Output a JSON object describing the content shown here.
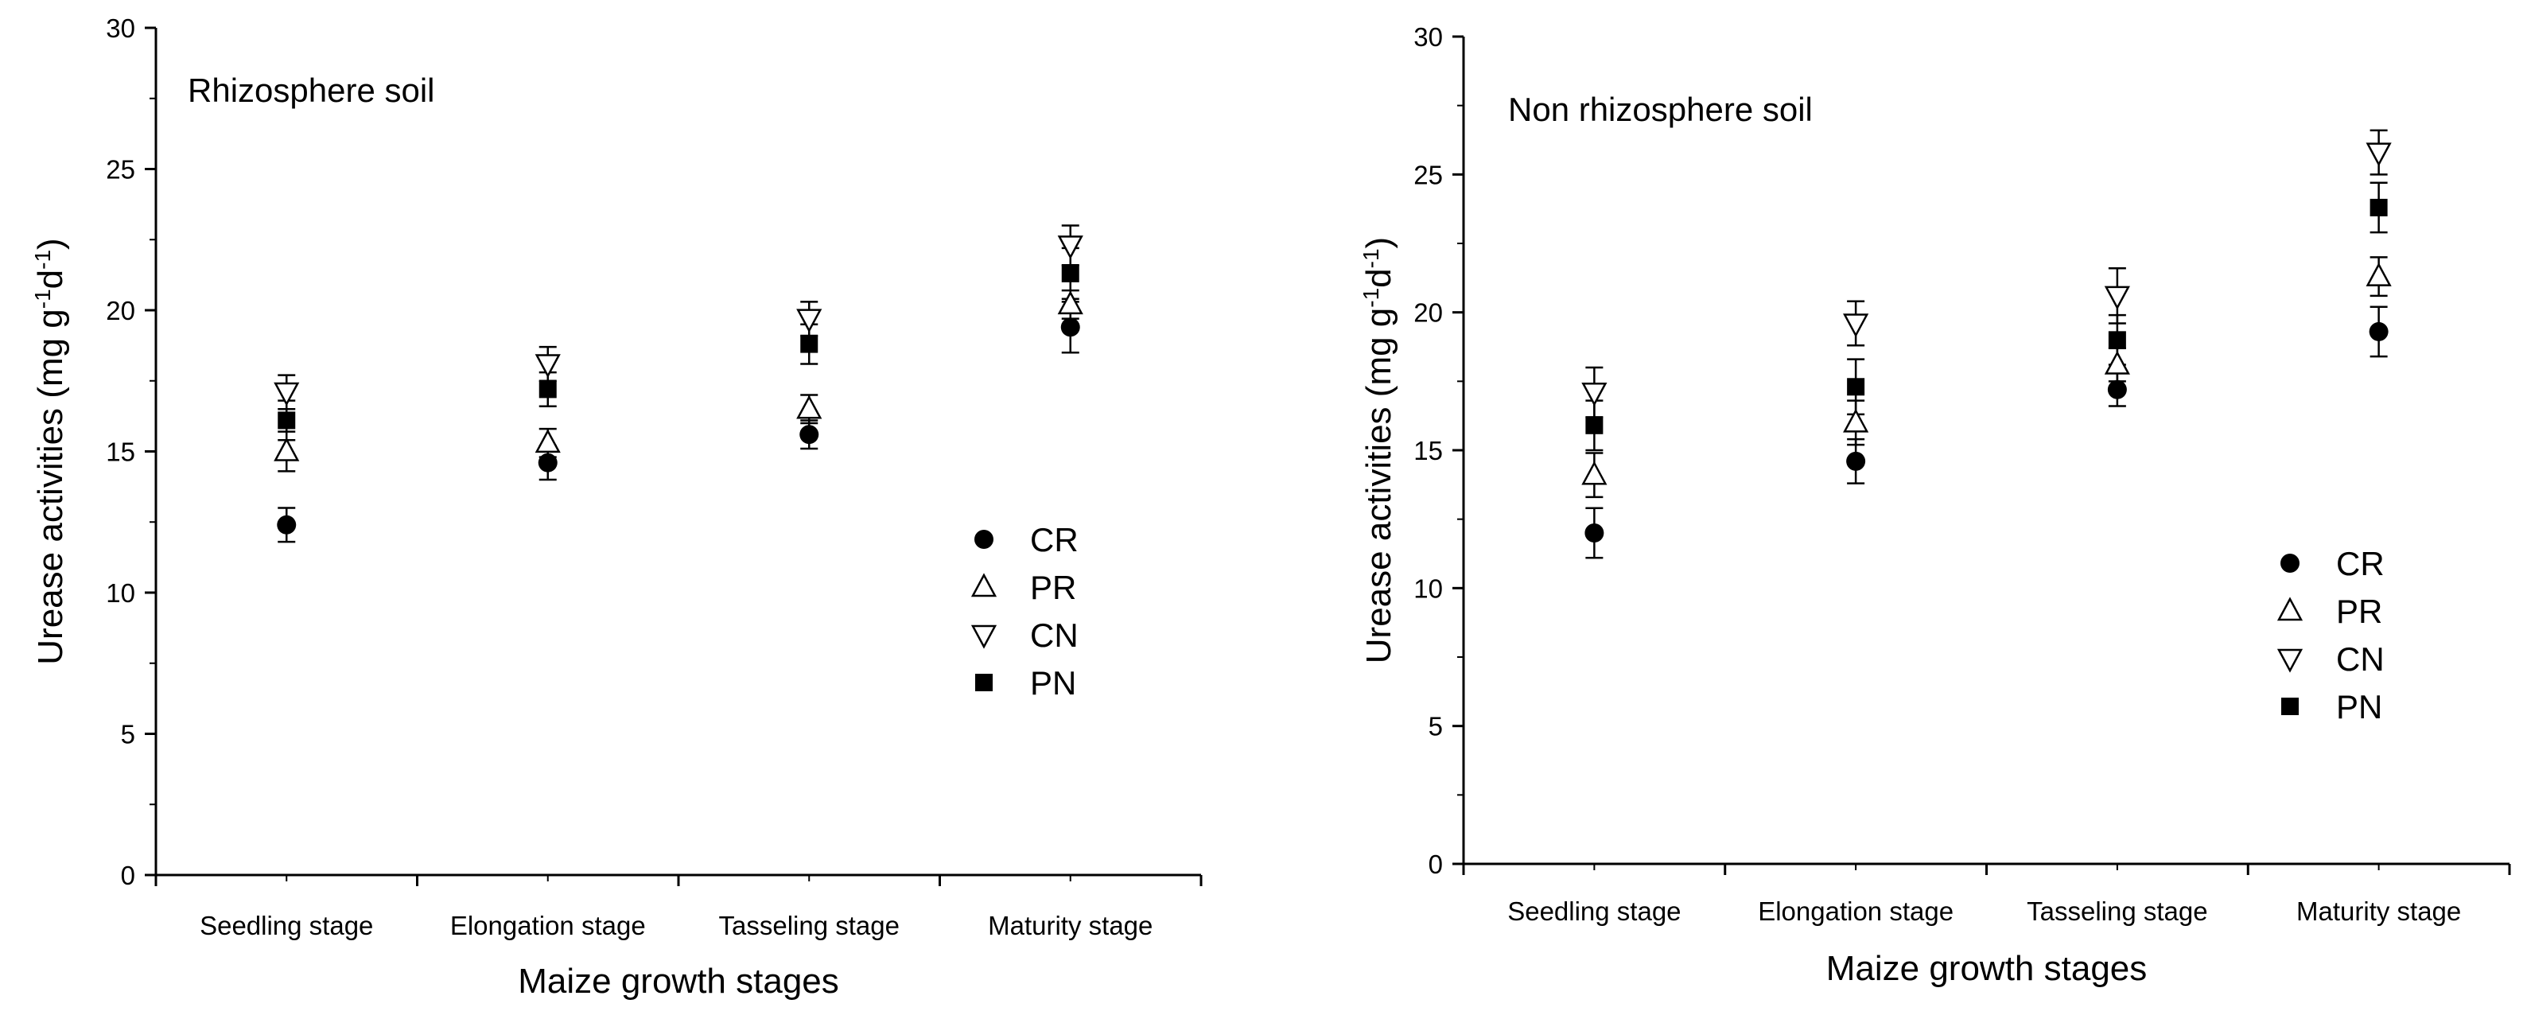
{
  "chart_data": [
    {
      "type": "scatter",
      "title": "Rhizosphere soil",
      "xlabel": "Maize growth stages",
      "ylabel": {
        "base": "Urease activities (mg g",
        "sup1": "-1",
        "mid": "d",
        "sup2": "-1",
        "end": ")"
      },
      "ylim": [
        0,
        30
      ],
      "yticks": [
        "0",
        "5",
        "10",
        "15",
        "20",
        "25",
        "30"
      ],
      "categories": [
        "Seedling stage",
        "Elongation stage",
        "Tasseling stage",
        "Maturity stage"
      ],
      "legend": "center-right",
      "series": [
        {
          "name": "CR",
          "marker": "circle",
          "values": [
            12.4,
            14.6,
            15.6,
            19.4
          ],
          "errors": [
            0.6,
            0.6,
            0.5,
            0.9
          ]
        },
        {
          "name": "PR",
          "marker": "triangle-up",
          "values": [
            15.0,
            15.3,
            16.5,
            20.2
          ],
          "errors": [
            0.7,
            0.5,
            0.5,
            0.5
          ]
        },
        {
          "name": "CN",
          "marker": "triangle-down",
          "values": [
            17.1,
            18.1,
            19.7,
            22.3
          ],
          "errors": [
            0.6,
            0.6,
            0.6,
            0.7
          ]
        },
        {
          "name": "PN",
          "marker": "square",
          "values": [
            16.1,
            17.2,
            18.8,
            21.3
          ],
          "errors": [
            0.7,
            0.6,
            0.7,
            0.9
          ]
        }
      ]
    },
    {
      "type": "scatter",
      "title": "Non rhizosphere soil",
      "xlabel": "Maize growth stages",
      "ylabel": {
        "base": "Urease activities (mg g",
        "sup1": "-1",
        "mid": "d",
        "sup2": "-1",
        "end": ")"
      },
      "ylim": [
        0,
        30
      ],
      "yticks": [
        "0",
        "5",
        "10",
        "15",
        "20",
        "25",
        "30"
      ],
      "categories": [
        "Seedling stage",
        "Elongation stage",
        "Tasseling stage",
        "Maturity stage"
      ],
      "legend": "center-right",
      "series": [
        {
          "name": "CR",
          "marker": "circle",
          "values": [
            12.0,
            14.6,
            17.2,
            19.3
          ],
          "errors": [
            0.9,
            0.8,
            0.6,
            0.9
          ]
        },
        {
          "name": "PR",
          "marker": "triangle-up",
          "values": [
            14.1,
            16.0,
            18.1,
            21.3
          ],
          "errors": [
            0.8,
            0.8,
            0.6,
            0.7
          ]
        },
        {
          "name": "CN",
          "marker": "triangle-down",
          "values": [
            17.1,
            19.6,
            20.6,
            25.8
          ],
          "errors": [
            0.9,
            0.8,
            1.0,
            0.8
          ]
        },
        {
          "name": "PN",
          "marker": "square",
          "values": [
            15.9,
            17.3,
            19.0,
            23.8
          ],
          "errors": [
            0.9,
            1.0,
            0.9,
            0.9
          ]
        }
      ]
    }
  ]
}
